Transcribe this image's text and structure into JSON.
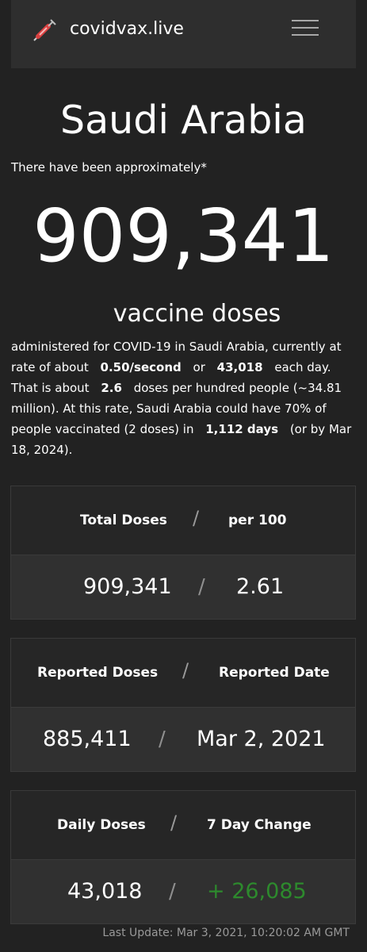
{
  "navbar": {
    "brand": "covidvax.live",
    "brand_icon": "syringe-icon",
    "menu_icon": "hamburger-menu-icon"
  },
  "header": {
    "country": "Saudi Arabia",
    "intro": "There have been approximately*",
    "total_big": "909,341",
    "doses_label": "vaccine doses"
  },
  "summary": {
    "part1": "administered for COVID-19 in Saudi Arabia, currently at rate of about",
    "rate_per_second": "0.50/second",
    "or": "or",
    "daily": "43,018",
    "part2": "each day. That is about",
    "per_hundred": "2.6",
    "part3": "doses per hundred people (~34.81 million). At this rate, Saudi Arabia could have 70% of people vaccinated (2 doses) in",
    "days": "1,112 days",
    "part4": "(or by Mar 18, 2024)."
  },
  "cards": [
    {
      "header_left": "Total Doses",
      "header_right": "per 100",
      "value_left": "909,341",
      "value_right": "2.61"
    },
    {
      "header_left": "Reported Doses",
      "header_right": "Reported Date",
      "value_left": "885,411",
      "value_right": "Mar 2, 2021"
    },
    {
      "header_left": "Daily Doses",
      "header_right": "7 Day Change",
      "value_left": "43,018",
      "value_right": "+ 26,085"
    }
  ],
  "separator": "/",
  "footer": {
    "last_update": "Last Update: Mar 3, 2021, 10:20:02 AM GMT"
  },
  "colors": {
    "background": "#222222",
    "navbar": "#2e2e2e",
    "positive_change": "#2d8a2d",
    "muted_text": "#999999"
  }
}
